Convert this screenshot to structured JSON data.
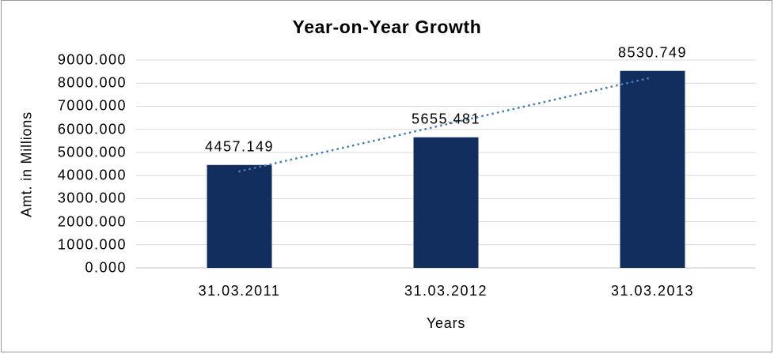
{
  "chart_data": {
    "type": "bar",
    "title": "Year-on-Year Growth",
    "xlabel": "Years",
    "ylabel": "Amt. in Millions",
    "categories": [
      "31.03.2011",
      "31.03.2012",
      "31.03.2013"
    ],
    "series": [
      {
        "name": "Amt. in Millions",
        "values": [
          4457.149,
          5655.481,
          8530.749
        ]
      }
    ],
    "data_labels": [
      "4457.149",
      "5655.481",
      "8530.749"
    ],
    "ylim": [
      0,
      9000
    ],
    "ytick_step": 1000,
    "yticks": [
      {
        "value": 9000,
        "label": "9000.000"
      },
      {
        "value": 8000,
        "label": "8000.000"
      },
      {
        "value": 7000,
        "label": "7000.000"
      },
      {
        "value": 6000,
        "label": "6000.000"
      },
      {
        "value": 5000,
        "label": "5000.000"
      },
      {
        "value": 4000,
        "label": "4000.000"
      },
      {
        "value": 3000,
        "label": "3000.000"
      },
      {
        "value": 2000,
        "label": "2000.000"
      },
      {
        "value": 1000,
        "label": "1000.000"
      },
      {
        "value": 0,
        "label": "0.000"
      }
    ],
    "grid": "horizontal",
    "legend": "none",
    "trendline": {
      "type": "linear",
      "style": "dotted",
      "applies_to": "Amt. in Millions"
    },
    "colors": {
      "bar": "#122E5E",
      "trendline": "#4A7EBB",
      "gridline": "#D9D9D9",
      "axis_line": "#C6C6C6",
      "text": "#000000",
      "background": "#FFFFFF",
      "frame_border": "#9A9A9A"
    }
  }
}
